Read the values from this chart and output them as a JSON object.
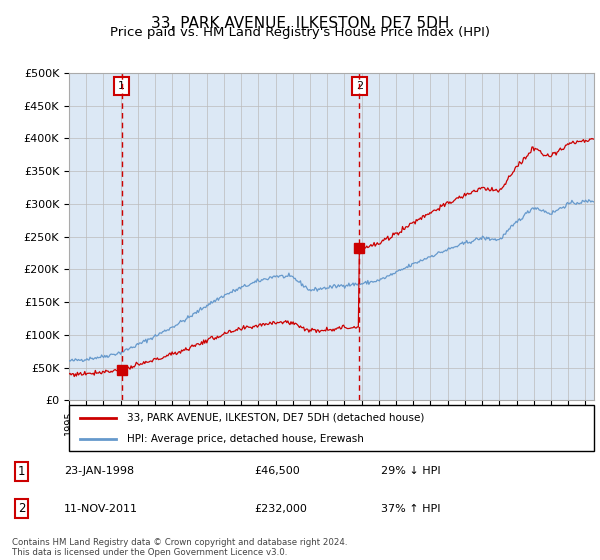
{
  "title": "33, PARK AVENUE, ILKESTON, DE7 5DH",
  "subtitle": "Price paid vs. HM Land Registry's House Price Index (HPI)",
  "title_fontsize": 11,
  "subtitle_fontsize": 9.5,
  "legend_line1": "33, PARK AVENUE, ILKESTON, DE7 5DH (detached house)",
  "legend_line2": "HPI: Average price, detached house, Erewash",
  "annotation1_date": "23-JAN-1998",
  "annotation1_price": "£46,500",
  "annotation1_hpi": "29% ↓ HPI",
  "annotation1_year": 1998.06,
  "annotation1_value": 46500,
  "annotation2_date": "11-NOV-2011",
  "annotation2_price": "£232,000",
  "annotation2_hpi": "37% ↑ HPI",
  "annotation2_year": 2011.86,
  "annotation2_value": 232000,
  "sale_color": "#cc0000",
  "hpi_color": "#6699cc",
  "shade_color": "#dce8f5",
  "background_color": "#dce8f5",
  "chart_bg": "#ffffff",
  "grid_color": "#cccccc",
  "footer": "Contains HM Land Registry data © Crown copyright and database right 2024.\nThis data is licensed under the Open Government Licence v3.0.",
  "ylim": [
    0,
    500000
  ],
  "yticks": [
    0,
    50000,
    100000,
    150000,
    200000,
    250000,
    300000,
    350000,
    400000,
    450000,
    500000
  ],
  "xmin": 1995.0,
  "xmax": 2025.5
}
